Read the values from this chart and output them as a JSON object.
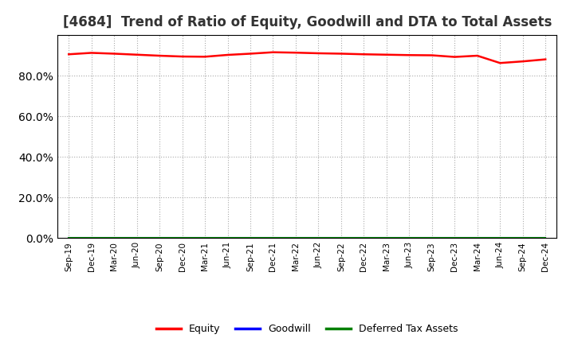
{
  "title": "[4684]  Trend of Ratio of Equity, Goodwill and DTA to Total Assets",
  "x_labels": [
    "Sep-19",
    "Dec-19",
    "Mar-20",
    "Jun-20",
    "Sep-20",
    "Dec-20",
    "Mar-21",
    "Jun-21",
    "Sep-21",
    "Dec-21",
    "Mar-22",
    "Jun-22",
    "Sep-22",
    "Dec-22",
    "Mar-23",
    "Jun-23",
    "Sep-23",
    "Dec-23",
    "Mar-24",
    "Jun-24",
    "Sep-24",
    "Dec-24"
  ],
  "equity": [
    90.5,
    91.2,
    90.8,
    90.3,
    89.8,
    89.4,
    89.3,
    90.2,
    90.8,
    91.5,
    91.3,
    91.0,
    90.8,
    90.5,
    90.3,
    90.1,
    90.0,
    89.2,
    89.8,
    86.2,
    87.0,
    88.0
  ],
  "goodwill": [
    0.0,
    0.0,
    0.0,
    0.0,
    0.0,
    0.0,
    0.0,
    0.0,
    0.0,
    0.0,
    0.0,
    0.0,
    0.0,
    0.0,
    0.0,
    0.0,
    0.0,
    0.0,
    0.0,
    0.0,
    0.0,
    0.0
  ],
  "dta": [
    0.0,
    0.0,
    0.0,
    0.0,
    0.0,
    0.0,
    0.0,
    0.0,
    0.0,
    0.0,
    0.0,
    0.0,
    0.0,
    0.0,
    0.0,
    0.0,
    0.0,
    0.0,
    0.0,
    0.0,
    0.0,
    0.0
  ],
  "equity_color": "#FF0000",
  "goodwill_color": "#0000FF",
  "dta_color": "#008000",
  "ylim_min": 0,
  "ylim_max": 100,
  "yticks": [
    0,
    20,
    40,
    60,
    80
  ],
  "background_color": "#FFFFFF",
  "plot_bg_color": "#FFFFFF",
  "grid_color": "#AAAAAA",
  "title_fontsize": 12,
  "legend_labels": [
    "Equity",
    "Goodwill",
    "Deferred Tax Assets"
  ]
}
